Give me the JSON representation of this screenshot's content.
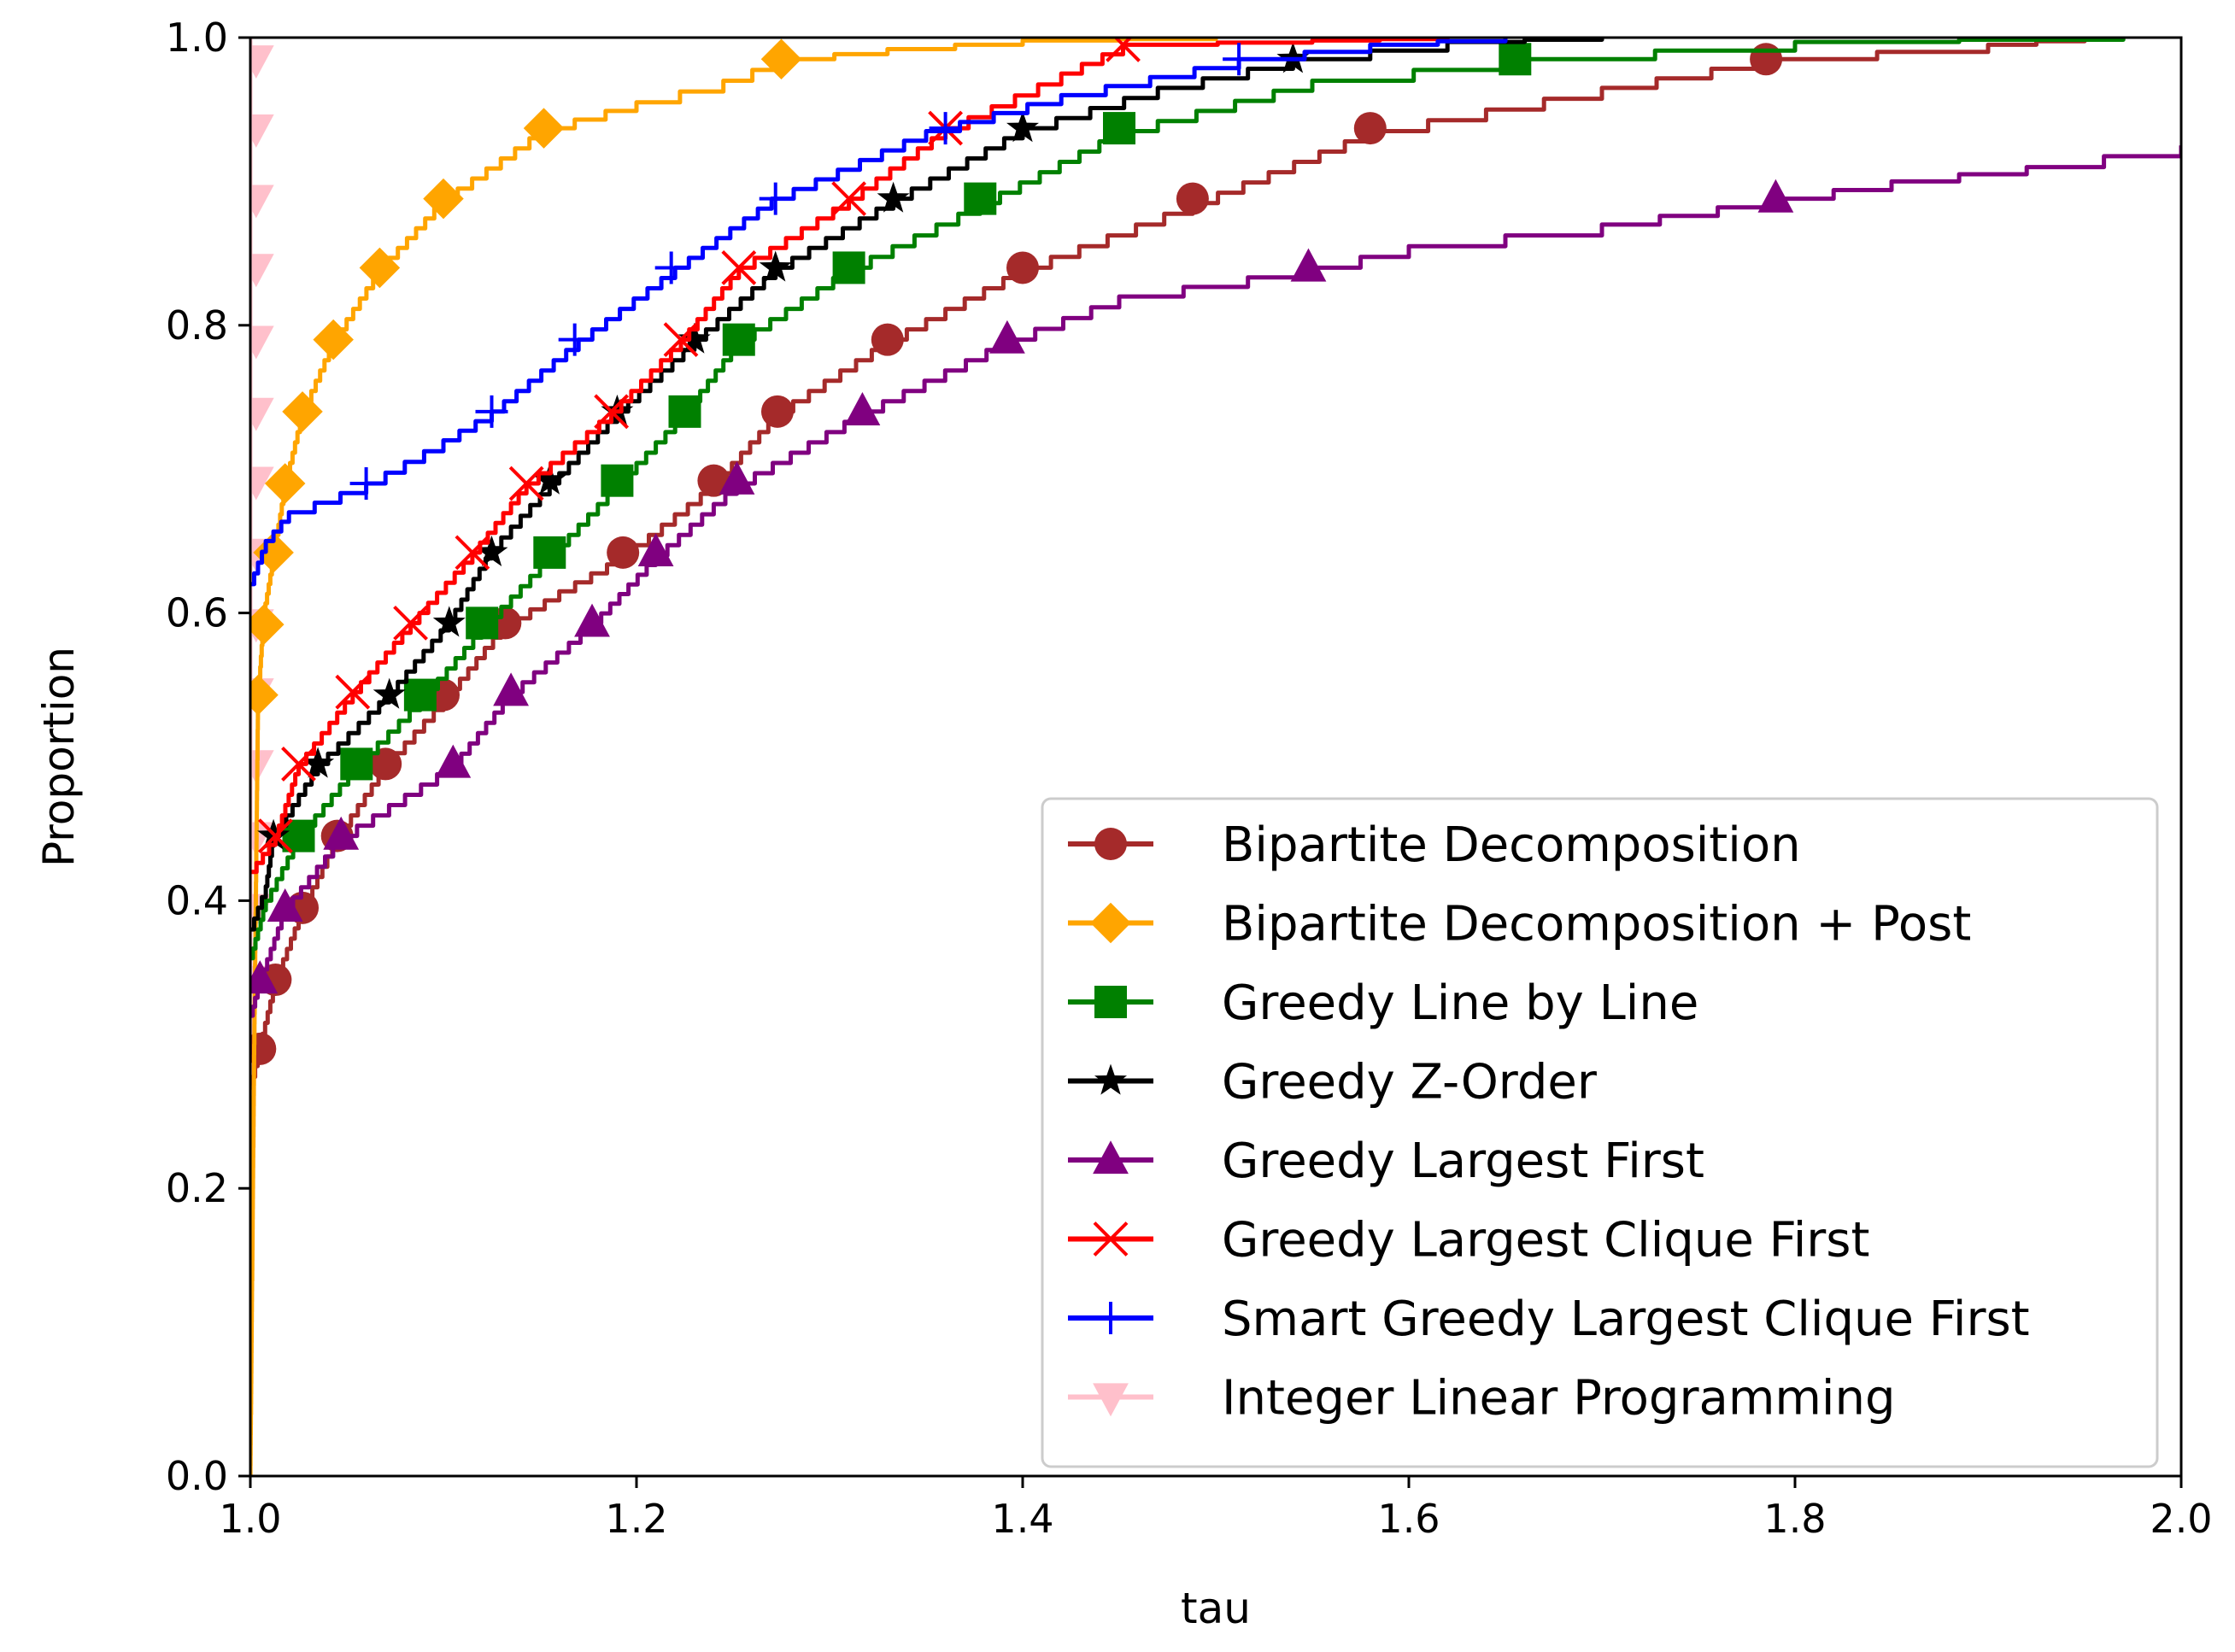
{
  "chart_data": {
    "type": "line",
    "title": "",
    "xlabel": "tau",
    "ylabel": "Proportion",
    "xlim": [
      1.0,
      2.0
    ],
    "ylim": [
      0.0,
      1.0
    ],
    "xticks": [
      "1.0",
      "1.2",
      "1.4",
      "1.6",
      "1.8",
      "2.0"
    ],
    "yticks": [
      "0.0",
      "0.2",
      "0.4",
      "0.6",
      "0.8",
      "1.0"
    ],
    "grid": false,
    "legend_position": "lower-right",
    "series": [
      {
        "name": "Bipartite Decomposition",
        "color": "#a52a2a",
        "marker": "circle",
        "points": [
          [
            1.0,
            0.27
          ],
          [
            1.005,
            0.3
          ],
          [
            1.013,
            0.345
          ],
          [
            1.027,
            0.395
          ],
          [
            1.045,
            0.445
          ],
          [
            1.07,
            0.495
          ],
          [
            1.1,
            0.54
          ],
          [
            1.13,
            0.59
          ],
          [
            1.16,
            0.615
          ],
          [
            1.193,
            0.64
          ],
          [
            1.24,
            0.69
          ],
          [
            1.273,
            0.74
          ],
          [
            1.33,
            0.79
          ],
          [
            1.4,
            0.84
          ],
          [
            1.488,
            0.885
          ],
          [
            1.58,
            0.935
          ],
          [
            1.7,
            0.965
          ],
          [
            1.785,
            0.985
          ],
          [
            1.9,
            0.995
          ],
          [
            1.95,
            1.0
          ]
        ],
        "markers": [
          [
            1.005,
            0.297
          ],
          [
            1.013,
            0.345
          ],
          [
            1.027,
            0.395
          ],
          [
            1.045,
            0.445
          ],
          [
            1.07,
            0.495
          ],
          [
            1.1,
            0.543
          ],
          [
            1.132,
            0.593
          ],
          [
            1.193,
            0.642
          ],
          [
            1.24,
            0.692
          ],
          [
            1.273,
            0.74
          ],
          [
            1.33,
            0.79
          ],
          [
            1.4,
            0.84
          ],
          [
            1.488,
            0.888
          ],
          [
            1.58,
            0.937
          ],
          [
            1.785,
            0.985
          ]
        ]
      },
      {
        "name": "Bipartite Decomposition + Post",
        "color": "#ffa500",
        "marker": "diamond",
        "points": [
          [
            1.0,
            0.0
          ],
          [
            1.002,
            0.3
          ],
          [
            1.004,
            0.54
          ],
          [
            1.007,
            0.6
          ],
          [
            1.012,
            0.64
          ],
          [
            1.018,
            0.69
          ],
          [
            1.027,
            0.74
          ],
          [
            1.043,
            0.79
          ],
          [
            1.067,
            0.84
          ],
          [
            1.1,
            0.888
          ],
          [
            1.152,
            0.937
          ],
          [
            1.2,
            0.955
          ],
          [
            1.245,
            0.97
          ],
          [
            1.275,
            0.985
          ],
          [
            1.33,
            0.992
          ],
          [
            1.4,
            0.998
          ],
          [
            1.5,
            1.0
          ]
        ],
        "markers": [
          [
            1.004,
            0.543
          ],
          [
            1.007,
            0.592
          ],
          [
            1.012,
            0.642
          ],
          [
            1.018,
            0.69
          ],
          [
            1.027,
            0.74
          ],
          [
            1.043,
            0.79
          ],
          [
            1.067,
            0.84
          ],
          [
            1.1,
            0.888
          ],
          [
            1.152,
            0.937
          ],
          [
            1.275,
            0.985
          ]
        ]
      },
      {
        "name": "Greedy Line by Line",
        "color": "#008000",
        "marker": "square",
        "points": [
          [
            1.0,
            0.36
          ],
          [
            1.008,
            0.4
          ],
          [
            1.025,
            0.445
          ],
          [
            1.055,
            0.495
          ],
          [
            1.088,
            0.54
          ],
          [
            1.12,
            0.59
          ],
          [
            1.155,
            0.64
          ],
          [
            1.19,
            0.69
          ],
          [
            1.225,
            0.74
          ],
          [
            1.253,
            0.79
          ],
          [
            1.31,
            0.84
          ],
          [
            1.378,
            0.885
          ],
          [
            1.45,
            0.935
          ],
          [
            1.55,
            0.97
          ],
          [
            1.655,
            0.985
          ],
          [
            1.8,
            0.997
          ],
          [
            1.97,
            1.0
          ]
        ],
        "markers": [
          [
            1.025,
            0.445
          ],
          [
            1.055,
            0.495
          ],
          [
            1.088,
            0.543
          ],
          [
            1.12,
            0.593
          ],
          [
            1.155,
            0.642
          ],
          [
            1.19,
            0.692
          ],
          [
            1.225,
            0.74
          ],
          [
            1.253,
            0.79
          ],
          [
            1.31,
            0.84
          ],
          [
            1.378,
            0.888
          ],
          [
            1.45,
            0.937
          ],
          [
            1.655,
            0.985
          ]
        ]
      },
      {
        "name": "Greedy Z-Order",
        "color": "#000000",
        "marker": "star",
        "points": [
          [
            1.0,
            0.38
          ],
          [
            1.008,
            0.41
          ],
          [
            1.012,
            0.445
          ],
          [
            1.035,
            0.495
          ],
          [
            1.072,
            0.545
          ],
          [
            1.103,
            0.595
          ],
          [
            1.125,
            0.645
          ],
          [
            1.155,
            0.69
          ],
          [
            1.19,
            0.74
          ],
          [
            1.23,
            0.79
          ],
          [
            1.272,
            0.84
          ],
          [
            1.333,
            0.888
          ],
          [
            1.4,
            0.937
          ],
          [
            1.47,
            0.965
          ],
          [
            1.54,
            0.985
          ],
          [
            1.62,
            0.997
          ],
          [
            1.7,
            1.0
          ]
        ],
        "markers": [
          [
            1.012,
            0.445
          ],
          [
            1.035,
            0.495
          ],
          [
            1.072,
            0.543
          ],
          [
            1.103,
            0.593
          ],
          [
            1.125,
            0.642
          ],
          [
            1.155,
            0.692
          ],
          [
            1.19,
            0.74
          ],
          [
            1.23,
            0.79
          ],
          [
            1.272,
            0.84
          ],
          [
            1.333,
            0.888
          ],
          [
            1.4,
            0.937
          ],
          [
            1.54,
            0.985
          ]
        ]
      },
      {
        "name": "Greedy Largest First",
        "color": "#800080",
        "marker": "triangle-up",
        "points": [
          [
            1.0,
            0.32
          ],
          [
            1.005,
            0.345
          ],
          [
            1.018,
            0.395
          ],
          [
            1.047,
            0.445
          ],
          [
            1.105,
            0.495
          ],
          [
            1.135,
            0.545
          ],
          [
            1.177,
            0.593
          ],
          [
            1.21,
            0.64
          ],
          [
            1.252,
            0.69
          ],
          [
            1.317,
            0.74
          ],
          [
            1.392,
            0.79
          ],
          [
            1.45,
            0.82
          ],
          [
            1.55,
            0.84
          ],
          [
            1.6,
            0.855
          ],
          [
            1.7,
            0.87
          ],
          [
            1.79,
            0.888
          ],
          [
            1.85,
            0.9
          ],
          [
            1.92,
            0.91
          ],
          [
            2.0,
            0.925
          ]
        ],
        "markers": [
          [
            1.005,
            0.345
          ],
          [
            1.018,
            0.395
          ],
          [
            1.047,
            0.445
          ],
          [
            1.105,
            0.495
          ],
          [
            1.135,
            0.545
          ],
          [
            1.177,
            0.593
          ],
          [
            1.21,
            0.642
          ],
          [
            1.252,
            0.692
          ],
          [
            1.317,
            0.74
          ],
          [
            1.392,
            0.79
          ],
          [
            1.548,
            0.84
          ],
          [
            1.79,
            0.888
          ]
        ]
      },
      {
        "name": "Greedy Largest Clique First",
        "color": "#ff0000",
        "marker": "x",
        "points": [
          [
            1.0,
            0.42
          ],
          [
            1.013,
            0.445
          ],
          [
            1.025,
            0.495
          ],
          [
            1.053,
            0.545
          ],
          [
            1.083,
            0.593
          ],
          [
            1.115,
            0.642
          ],
          [
            1.143,
            0.69
          ],
          [
            1.187,
            0.74
          ],
          [
            1.223,
            0.79
          ],
          [
            1.253,
            0.84
          ],
          [
            1.31,
            0.888
          ],
          [
            1.36,
            0.937
          ],
          [
            1.42,
            0.975
          ],
          [
            1.452,
            0.995
          ],
          [
            1.55,
            0.998
          ],
          [
            1.62,
            1.0
          ]
        ],
        "markers": [
          [
            1.013,
            0.445
          ],
          [
            1.025,
            0.495
          ],
          [
            1.053,
            0.545
          ],
          [
            1.083,
            0.593
          ],
          [
            1.115,
            0.642
          ],
          [
            1.143,
            0.69
          ],
          [
            1.187,
            0.74
          ],
          [
            1.223,
            0.79
          ],
          [
            1.253,
            0.84
          ],
          [
            1.31,
            0.888
          ],
          [
            1.36,
            0.937
          ],
          [
            1.452,
            0.995
          ]
        ]
      },
      {
        "name": "Smart Greedy Largest Clique First",
        "color": "#0000ff",
        "marker": "plus",
        "points": [
          [
            1.0,
            0.62
          ],
          [
            1.008,
            0.65
          ],
          [
            1.02,
            0.67
          ],
          [
            1.06,
            0.69
          ],
          [
            1.1,
            0.72
          ],
          [
            1.125,
            0.74
          ],
          [
            1.17,
            0.79
          ],
          [
            1.22,
            0.84
          ],
          [
            1.27,
            0.888
          ],
          [
            1.35,
            0.935
          ],
          [
            1.42,
            0.96
          ],
          [
            1.512,
            0.985
          ],
          [
            1.58,
            0.995
          ],
          [
            1.65,
            1.0
          ]
        ],
        "markers": [
          [
            1.06,
            0.69
          ],
          [
            1.125,
            0.74
          ],
          [
            1.168,
            0.79
          ],
          [
            1.218,
            0.84
          ],
          [
            1.272,
            0.888
          ],
          [
            1.36,
            0.937
          ],
          [
            1.512,
            0.985
          ]
        ]
      },
      {
        "name": "Integer Linear Programming",
        "color": "#ffc0cb",
        "marker": "triangle-down",
        "points": [
          [
            1.0,
            0.0
          ],
          [
            1.0,
            1.0
          ]
        ],
        "markers": [
          [
            1.003,
            0.345
          ],
          [
            1.003,
            0.395
          ],
          [
            1.003,
            0.445
          ],
          [
            1.003,
            0.495
          ],
          [
            1.003,
            0.545
          ],
          [
            1.003,
            0.593
          ],
          [
            1.003,
            0.642
          ],
          [
            1.003,
            0.692
          ],
          [
            1.003,
            0.74
          ],
          [
            1.003,
            0.79
          ],
          [
            1.003,
            0.84
          ],
          [
            1.003,
            0.888
          ],
          [
            1.003,
            0.937
          ],
          [
            1.003,
            0.985
          ]
        ]
      }
    ]
  }
}
